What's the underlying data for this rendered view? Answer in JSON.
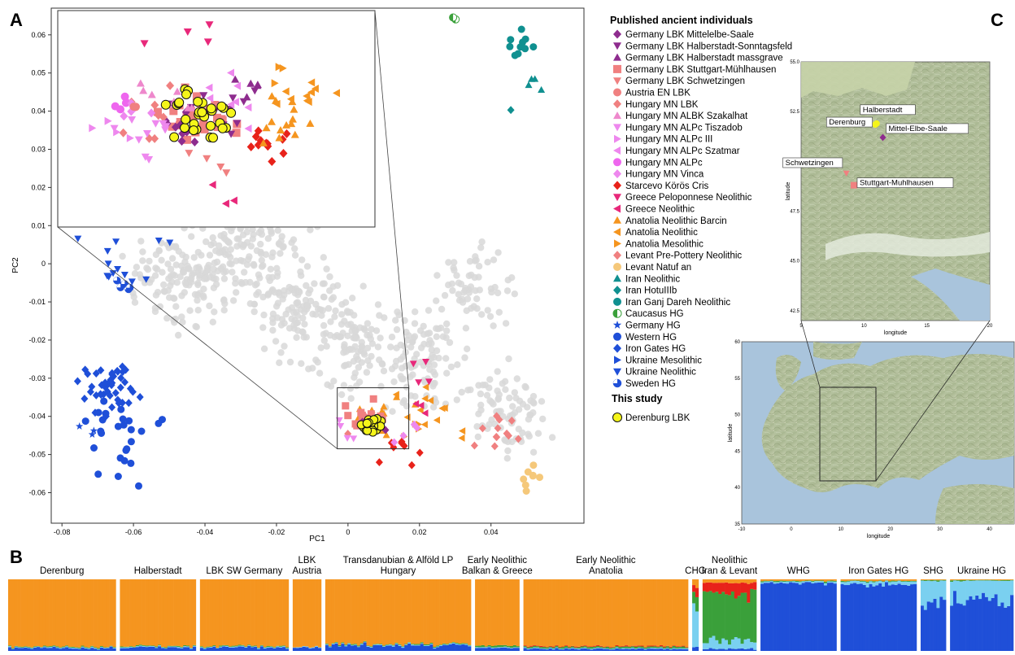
{
  "panels": {
    "a": "A",
    "b": "B",
    "c": "C"
  },
  "colors": {
    "purple": "#8e2c8e",
    "salmon": "#f08080",
    "red_orange": "#e84a3a",
    "pink": "#ee88cc",
    "violet": "#ee66ee",
    "red": "#e8221a",
    "magenta": "#e8287a",
    "orange": "#f5951f",
    "peach": "#f5c87a",
    "teal": "#109090",
    "green": "#3aa03a",
    "blue": "#1f4fd8",
    "grey": "#d8d8d8",
    "yellow": "#f5f51a",
    "sky": "#7ad0f0"
  },
  "chart_data": [
    {
      "type": "scatter",
      "xlabel": "PC1",
      "ylabel": "PC2",
      "xlim": [
        -0.083,
        0.066
      ],
      "ylim": [
        -0.068,
        0.067
      ],
      "xticks": [
        "-0.08",
        "-0.06",
        "-0.04",
        "-0.02",
        "0",
        "0.02",
        "0.04"
      ],
      "xtick_values": [
        -0.08,
        -0.06,
        -0.04,
        -0.02,
        0,
        0.02,
        0.04
      ],
      "yticks": [
        "0.06",
        "0.05",
        "0.04",
        "0.03",
        "0.02",
        "0.01",
        "0",
        "-0.01",
        "-0.02",
        "-0.03",
        "-0.04",
        "-0.05",
        "-0.06"
      ],
      "ytick_values": [
        0.06,
        0.05,
        0.04,
        0.03,
        0.02,
        0.01,
        0,
        -0.01,
        -0.02,
        -0.03,
        -0.04,
        -0.05,
        -0.06
      ],
      "zoom_box": {
        "x": [
          -0.003,
          0.017
        ],
        "y": [
          -0.0485,
          -0.0325
        ]
      },
      "inset_range": {
        "x": [
          -0.084,
          0.002
        ],
        "y": [
          0.0115,
          0.0675
        ]
      },
      "legend_title": "Published ancient individuals",
      "legend_title_2": "This study",
      "series": [
        {
          "name": "Germany LBK Mittelelbe-Saale",
          "marker": "diamond",
          "color": "#8e2c8e"
        },
        {
          "name": "Germany LBK Halberstadt-Sonntagsfeld",
          "marker": "tri-down",
          "color": "#8e2c8e"
        },
        {
          "name": "Germany LBK Halberstadt massgrave",
          "marker": "tri-up",
          "color": "#8e2c8e"
        },
        {
          "name": "Germany LBK Stuttgart-Mühlhausen",
          "marker": "square",
          "color": "#f08080"
        },
        {
          "name": "Germany LBK Schwetzingen",
          "marker": "tri-down",
          "color": "#f08080"
        },
        {
          "name": "Austria EN LBK",
          "marker": "circle",
          "color": "#f08080"
        },
        {
          "name": "Hungary MN LBK",
          "marker": "diamond",
          "color": "#f08080"
        },
        {
          "name": "Hungary MN ALBK Szakalhat",
          "marker": "tri-up",
          "color": "#ee88cc"
        },
        {
          "name": "Hungary MN ALPc Tiszadob",
          "marker": "tri-down",
          "color": "#ee88ee"
        },
        {
          "name": "Hungary MN ALPc III",
          "marker": "tri-right",
          "color": "#ee88ee"
        },
        {
          "name": "Hungary MN ALPc Szatmar",
          "marker": "tri-left",
          "color": "#ee88ee"
        },
        {
          "name": "Hungary MN ALPc",
          "marker": "circle",
          "color": "#ee66ee"
        },
        {
          "name": "Hungary MN Vinca",
          "marker": "diamond",
          "color": "#ee88ee"
        },
        {
          "name": "Starcevo Körös Cris",
          "marker": "diamond",
          "color": "#e8221a"
        },
        {
          "name": "Greece Peloponnese Neolithic",
          "marker": "tri-down",
          "color": "#e8287a"
        },
        {
          "name": "Greece Neolithic",
          "marker": "tri-left",
          "color": "#e8287a"
        },
        {
          "name": "Anatolia Neolithic Barcin",
          "marker": "tri-up",
          "color": "#f5951f"
        },
        {
          "name": "Anatolia Neolithic",
          "marker": "tri-left",
          "color": "#f5951f"
        },
        {
          "name": "Anatolia Mesolithic",
          "marker": "tri-right",
          "color": "#f5951f"
        },
        {
          "name": "Levant Pre-Pottery Neolithic",
          "marker": "diamond",
          "color": "#f08080"
        },
        {
          "name": "Levant Natuf an",
          "marker": "circle",
          "color": "#f5c87a"
        },
        {
          "name": "Iran Neolithic",
          "marker": "tri-up",
          "color": "#109090"
        },
        {
          "name": "Iran HotuIIIb",
          "marker": "diamond",
          "color": "#109090"
        },
        {
          "name": "Iran Ganj Dareh Neolithic",
          "marker": "circle",
          "color": "#109090"
        },
        {
          "name": "Caucasus HG",
          "marker": "half-circle",
          "color": "#3aa03a"
        },
        {
          "name": "Germany HG",
          "marker": "star",
          "color": "#1f4fd8"
        },
        {
          "name": "Western HG",
          "marker": "circle",
          "color": "#1f4fd8"
        },
        {
          "name": "Iron Gates HG",
          "marker": "diamond",
          "color": "#1f4fd8"
        },
        {
          "name": "Ukraine Mesolithic",
          "marker": "tri-right",
          "color": "#1f4fd8"
        },
        {
          "name": "Ukraine Neolithic",
          "marker": "tri-down",
          "color": "#1f4fd8"
        },
        {
          "name": "Sweden HG",
          "marker": "pie-circle",
          "color": "#1f4fd8"
        }
      ],
      "this_study": [
        {
          "name": "Derenburg LBK",
          "marker": "circle",
          "color": "#f5f51a"
        }
      ]
    },
    {
      "type": "map",
      "xlabel": "longitude",
      "ylabel": "latitude",
      "xlim": [
        5,
        20
      ],
      "ylim": [
        42,
        55
      ],
      "xticks": [
        "5",
        "10",
        "15",
        "20"
      ],
      "yticks": [
        "55.0",
        "52.5",
        "50.0",
        "47.5",
        "45.0",
        "42.5"
      ],
      "sites": [
        {
          "label": "Halberstadt",
          "lon": 11.0,
          "lat": 51.9
        },
        {
          "label": "Derenburg",
          "lon": 10.9,
          "lat": 51.85
        },
        {
          "label": "Mittel-Elbe-Saale",
          "lon": 11.5,
          "lat": 51.2
        },
        {
          "label": "Schwetzingen",
          "lon": 8.6,
          "lat": 49.4
        },
        {
          "label": "Stuttgart-Muhlhausen",
          "lon": 9.2,
          "lat": 48.8
        }
      ]
    },
    {
      "type": "map",
      "xlabel": "longitude",
      "ylabel": "latitude",
      "xlim": [
        -10,
        45
      ],
      "ylim": [
        35,
        60
      ],
      "xticks": [
        "-10",
        "0",
        "10",
        "20",
        "30",
        "40"
      ],
      "yticks": [
        "60",
        "55",
        "50",
        "45",
        "40",
        "35"
      ],
      "zoom_box": {
        "lon": [
          5,
          20
        ],
        "lat": [
          42,
          55
        ]
      }
    },
    {
      "type": "bar",
      "stacked": true,
      "components": [
        "orange",
        "blue",
        "green",
        "red",
        "sky"
      ],
      "component_colors": [
        "#f5951f",
        "#1f4fd8",
        "#3aa03a",
        "#e8221a",
        "#7ad0f0"
      ],
      "groups": [
        {
          "label": "Derenburg",
          "n": 34,
          "profile": [
            0.94,
            0.04,
            0.01,
            0.0,
            0.01
          ]
        },
        {
          "label": "Halberstadt",
          "n": 24,
          "profile": [
            0.93,
            0.05,
            0.01,
            0.0,
            0.01
          ]
        },
        {
          "label": "LBK SW Germany",
          "n": 28,
          "profile": [
            0.93,
            0.05,
            0.01,
            0.0,
            0.01
          ]
        },
        {
          "label": "LBK\nAustria",
          "n": 9,
          "profile": [
            0.94,
            0.05,
            0.0,
            0.0,
            0.01
          ]
        },
        {
          "label": "Transdanubian & Alföld LP\nHungary",
          "n": 46,
          "profile": [
            0.9,
            0.08,
            0.01,
            0.0,
            0.01
          ]
        },
        {
          "label": "Early Neolithic\nBalkan & Greece",
          "n": 14,
          "profile": [
            0.93,
            0.04,
            0.02,
            0.0,
            0.01
          ]
        },
        {
          "label": "Early Neolithic\nAnatolia",
          "n": 52,
          "profile": [
            0.93,
            0.03,
            0.02,
            0.01,
            0.01
          ]
        },
        {
          "label": "CHG",
          "n": 2,
          "profile": [
            0.1,
            0.05,
            0.2,
            0.1,
            0.55
          ]
        },
        {
          "label": "Neolithic\nIran & Levant",
          "n": 17,
          "profile": [
            0.05,
            0.03,
            0.65,
            0.15,
            0.12
          ]
        },
        {
          "label": "WHG",
          "n": 24,
          "profile": [
            0.02,
            0.95,
            0.01,
            0.0,
            0.02
          ]
        },
        {
          "label": "Iron Gates HG",
          "n": 24,
          "profile": [
            0.02,
            0.93,
            0.01,
            0.0,
            0.04
          ]
        },
        {
          "label": "SHG",
          "n": 8,
          "profile": [
            0.01,
            0.7,
            0.01,
            0.0,
            0.28
          ]
        },
        {
          "label": "Ukraine HG",
          "n": 20,
          "profile": [
            0.01,
            0.7,
            0.01,
            0.0,
            0.28
          ]
        }
      ]
    }
  ]
}
